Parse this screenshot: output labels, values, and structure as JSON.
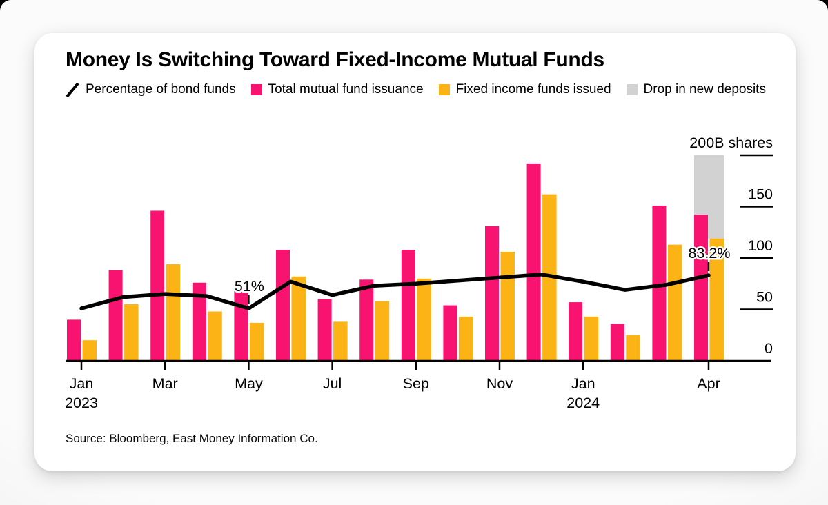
{
  "colors": {
    "pink": "#f91370",
    "yellow": "#fcb315",
    "gray": "#d2d2d2",
    "line": "#000000",
    "text": "#000000",
    "card_bg": "#ffffff"
  },
  "legend": {
    "items": [
      {
        "label": "Percentage of bond funds",
        "glyph": "slash",
        "color_key": "line"
      },
      {
        "label": "Total mutual fund issuance",
        "glyph": "square",
        "color_key": "pink"
      },
      {
        "label": "Fixed income funds issued",
        "glyph": "square",
        "color_key": "yellow"
      },
      {
        "label": "Drop in new deposits",
        "glyph": "square",
        "color_key": "gray"
      }
    ]
  },
  "chart_data": {
    "type": "combo-bar-line",
    "title": "Money Is Switching Toward Fixed-Income Mutual Funds",
    "source": "Source: Bloomberg, East Money Information Co.",
    "unit_note": "billions of shares",
    "categories": [
      "Jan 2023",
      "Feb 2023",
      "Mar 2023",
      "Apr 2023",
      "May 2023",
      "Jun 2023",
      "Jul 2023",
      "Aug 2023",
      "Sep 2023",
      "Oct 2023",
      "Nov 2023",
      "Dec 2023",
      "Jan 2024",
      "Feb 2024",
      "Mar 2024",
      "Apr 2024"
    ],
    "series": [
      {
        "name": "Total mutual fund issuance",
        "type": "bar",
        "color_key": "pink",
        "values": [
          40,
          88,
          146,
          76,
          68,
          108,
          60,
          79,
          108,
          54,
          131,
          192,
          57,
          36,
          151,
          142
        ]
      },
      {
        "name": "Fixed income funds issued",
        "type": "bar",
        "color_key": "yellow",
        "values": [
          20,
          55,
          94,
          48,
          37,
          82,
          38,
          58,
          80,
          43,
          106,
          162,
          43,
          25,
          113,
          119
        ]
      },
      {
        "name": "Drop in new deposits",
        "type": "range-bar",
        "color_key": "gray",
        "month_index": 15,
        "from": 119,
        "to": 200
      },
      {
        "name": "Percentage of bond funds",
        "type": "line",
        "color_key": "line",
        "values": [
          51,
          62,
          65,
          63,
          51,
          77,
          64,
          73,
          75,
          78,
          81,
          84,
          77,
          69,
          74,
          83.2
        ]
      }
    ],
    "y_axis": {
      "side": "right",
      "range": [
        0,
        200
      ],
      "tick_labels": [
        "0",
        "50",
        "100",
        "150"
      ],
      "tick_values": [
        0,
        50,
        100,
        150
      ],
      "top_tick_value": 200,
      "top_label": "200B shares",
      "grid": false
    },
    "x_axis": {
      "ticks": [
        {
          "index": 0,
          "label": "Jan",
          "year": "2023"
        },
        {
          "index": 2,
          "label": "Mar"
        },
        {
          "index": 4,
          "label": "May"
        },
        {
          "index": 6,
          "label": "Jul"
        },
        {
          "index": 8,
          "label": "Sep"
        },
        {
          "index": 10,
          "label": "Nov"
        },
        {
          "index": 12,
          "label": "Jan",
          "year": "2024"
        },
        {
          "index": 15,
          "label": "Apr"
        }
      ]
    },
    "annotations": [
      {
        "text": "51%",
        "month_index": 4,
        "value": 51
      },
      {
        "text": "83.2%",
        "month_index": 15,
        "value": 83.2
      }
    ],
    "legend_position": "top"
  }
}
